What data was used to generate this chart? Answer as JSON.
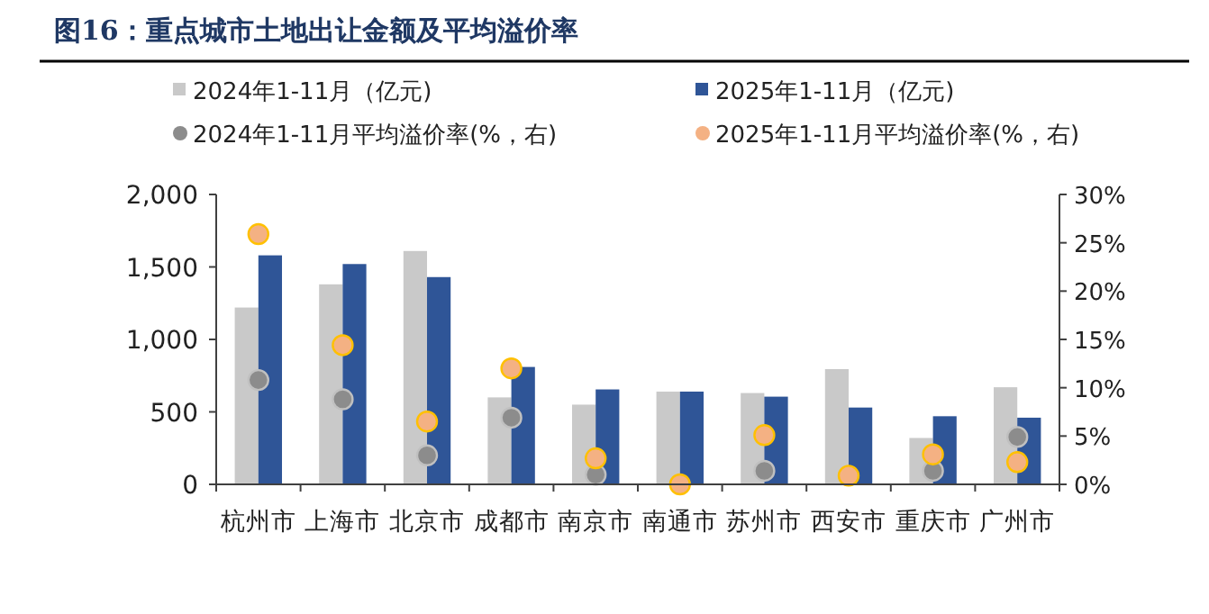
{
  "chart_data": {
    "type": "bar",
    "title": "图16：重点城市土地出让金额及平均溢价率",
    "categories": [
      "杭州市",
      "上海市",
      "北京市",
      "成都市",
      "南京市",
      "南通市",
      "苏州市",
      "西安市",
      "重庆市",
      "广州市"
    ],
    "series": [
      {
        "name": "2024年1-11月（亿元)",
        "color": "#c9c9c9",
        "values": [
          1220,
          1380,
          1610,
          600,
          550,
          640,
          630,
          795,
          320,
          670
        ]
      },
      {
        "name": "2025年1-11月（亿元)",
        "color": "#2f5597",
        "values": [
          1580,
          1520,
          1430,
          810,
          655,
          640,
          605,
          530,
          470,
          460
        ]
      },
      {
        "name": "2024年1-11月平均溢价率(%，右)",
        "type": "scatter",
        "axis": "y2",
        "marker": "circle",
        "color": "#8c8c8c",
        "values": [
          10.8,
          8.8,
          3.0,
          6.9,
          1.0,
          null,
          1.4,
          null,
          1.4,
          4.9
        ]
      },
      {
        "name": "2025年1-11月平均溢价率(%，右)",
        "type": "scatter",
        "axis": "y2",
        "marker": "circle",
        "color": "#f4b183",
        "values": [
          25.9,
          14.4,
          6.5,
          12.0,
          2.7,
          0.0,
          5.1,
          0.9,
          3.1,
          2.3
        ]
      }
    ],
    "ylim": [
      0,
      2000
    ],
    "yticks": [
      0,
      500,
      {
        "value": 1000,
        "label": "1,000"
      },
      {
        "value": 1500,
        "label": "1,500"
      },
      {
        "value": 2000,
        "label": "2,000"
      }
    ],
    "y2lim": [
      0,
      30
    ],
    "y2ticks": [
      {
        "value": 0,
        "label": "0%"
      },
      {
        "value": 5,
        "label": "5%"
      },
      {
        "value": 10,
        "label": "10%"
      },
      {
        "value": 15,
        "label": "15%"
      },
      {
        "value": 20,
        "label": "20%"
      },
      {
        "value": 25,
        "label": "25%"
      },
      {
        "value": 30,
        "label": "30%"
      }
    ],
    "legend": "top",
    "grid": false
  }
}
